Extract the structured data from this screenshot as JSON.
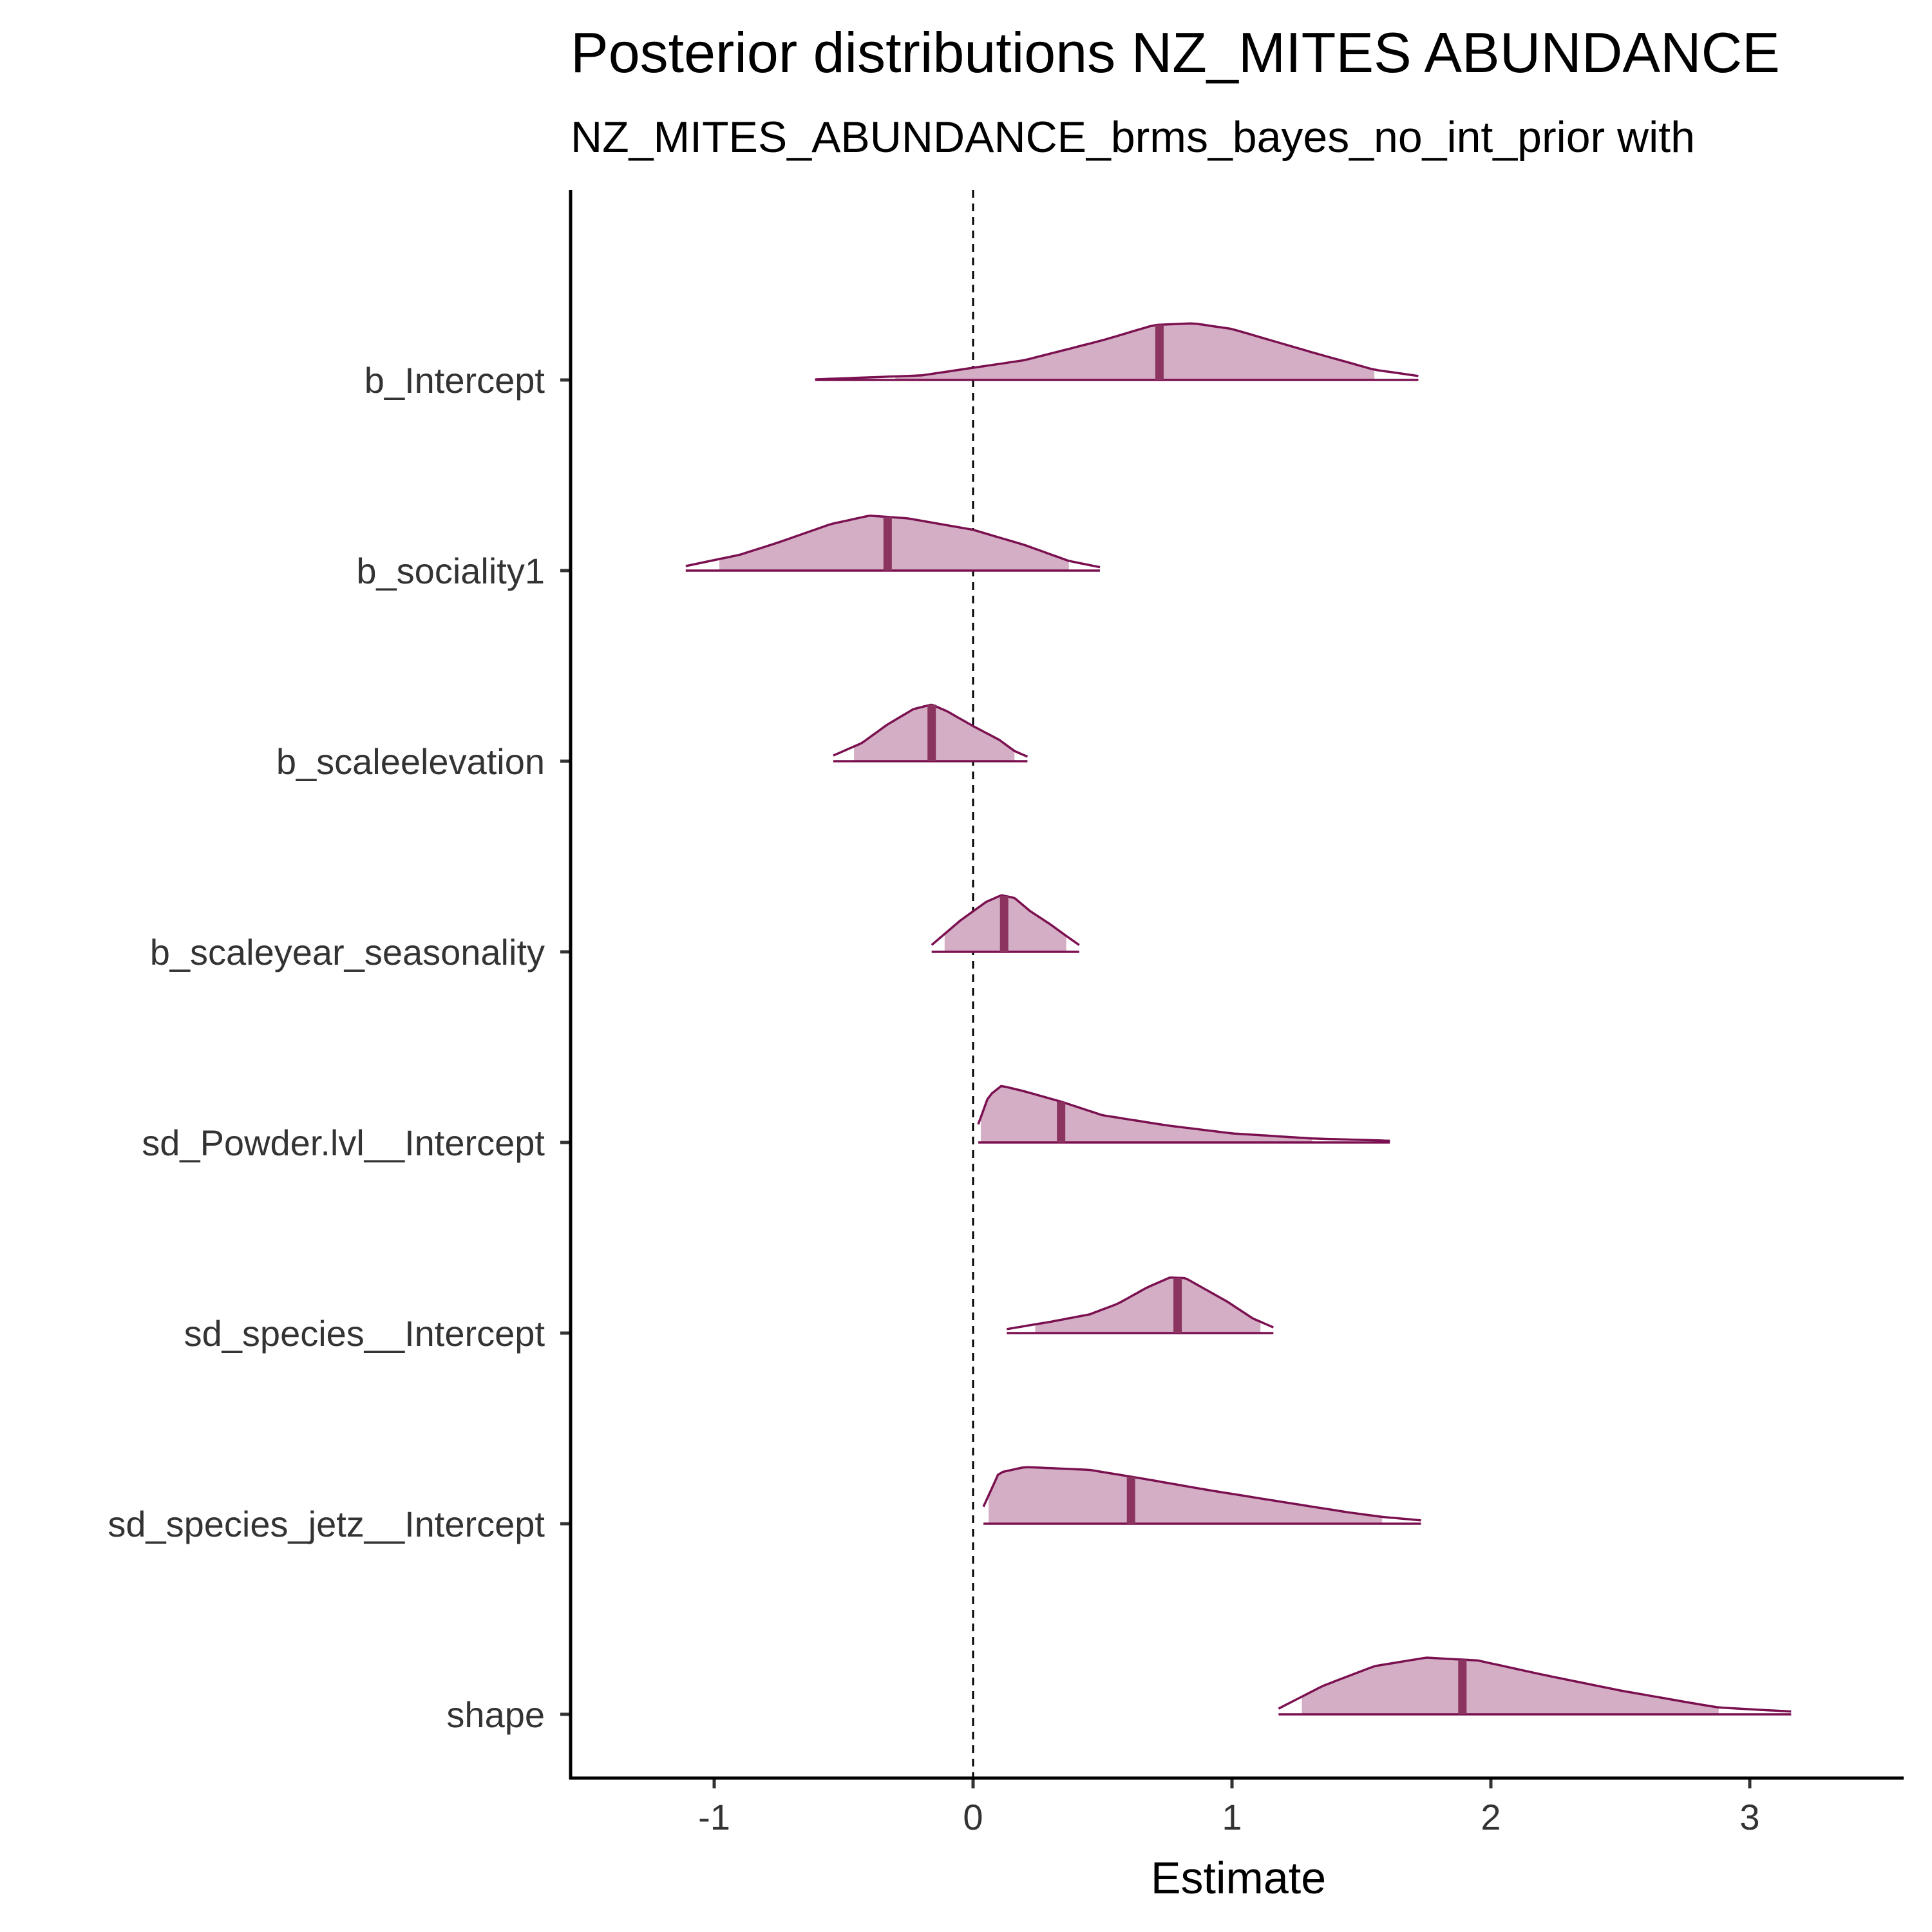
{
  "chart_data": {
    "type": "area",
    "title": "Posterior distributions NZ_MITES ABUNDANCE",
    "subtitle": "NZ_MITES_ABUNDANCE_brms_bayes_no_int_prior with",
    "xlabel": "Estimate",
    "ylabel": "",
    "xlim": [
      -1.55,
      3.6
    ],
    "x_ticks": [
      "-1",
      "0",
      "1",
      "2",
      "3"
    ],
    "reference_line_x": 0,
    "colors": {
      "fill": "#d4aec4",
      "line": "#7b1050",
      "median": "#8c3460",
      "axis": "#000000"
    },
    "categories": [
      "b_Intercept",
      "b_sociality1",
      "b_scaleelevation",
      "b_scaleyear_seasonality",
      "sd_Powder.lvl__Intercept",
      "sd_species__Intercept",
      "sd_species_jetz__Intercept",
      "shape"
    ],
    "series": [
      {
        "range": [
          -0.61,
          1.72
        ],
        "interval": [
          -0.3,
          1.55
        ],
        "median": 0.72,
        "density": [
          [
            -0.61,
            0.01
          ],
          [
            -0.2,
            0.08
          ],
          [
            0.2,
            0.35
          ],
          [
            0.5,
            0.7
          ],
          [
            0.7,
            0.97
          ],
          [
            0.85,
            1.0
          ],
          [
            1.0,
            0.9
          ],
          [
            1.3,
            0.5
          ],
          [
            1.55,
            0.18
          ],
          [
            1.72,
            0.07
          ]
        ]
      },
      {
        "range": [
          -1.11,
          0.49
        ],
        "interval": [
          -0.98,
          0.37
        ],
        "median": -0.33,
        "density": [
          [
            -1.11,
            0.08
          ],
          [
            -0.9,
            0.28
          ],
          [
            -0.75,
            0.5
          ],
          [
            -0.55,
            0.82
          ],
          [
            -0.4,
            0.97
          ],
          [
            -0.25,
            0.92
          ],
          [
            0.0,
            0.72
          ],
          [
            0.2,
            0.45
          ],
          [
            0.37,
            0.17
          ],
          [
            0.49,
            0.06
          ]
        ]
      },
      {
        "range": [
          -0.54,
          0.21
        ],
        "interval": [
          -0.46,
          0.16
        ],
        "median": -0.16,
        "density": [
          [
            -0.54,
            0.1
          ],
          [
            -0.43,
            0.32
          ],
          [
            -0.33,
            0.65
          ],
          [
            -0.23,
            0.92
          ],
          [
            -0.16,
            1.0
          ],
          [
            -0.1,
            0.88
          ],
          [
            0.0,
            0.62
          ],
          [
            0.1,
            0.38
          ],
          [
            0.16,
            0.18
          ],
          [
            0.21,
            0.08
          ]
        ]
      },
      {
        "range": [
          -0.16,
          0.41
        ],
        "interval": [
          -0.11,
          0.36
        ],
        "median": 0.12,
        "density": [
          [
            -0.16,
            0.12
          ],
          [
            -0.05,
            0.55
          ],
          [
            0.05,
            0.88
          ],
          [
            0.11,
            1.0
          ],
          [
            0.16,
            0.95
          ],
          [
            0.22,
            0.72
          ],
          [
            0.3,
            0.48
          ],
          [
            0.36,
            0.28
          ],
          [
            0.41,
            0.12
          ]
        ]
      },
      {
        "range": [
          0.02,
          1.61
        ],
        "interval": [
          0.03,
          1.31
        ],
        "median": 0.34,
        "density": [
          [
            0.02,
            0.32
          ],
          [
            0.06,
            0.82
          ],
          [
            0.11,
            1.0
          ],
          [
            0.2,
            0.9
          ],
          [
            0.34,
            0.72
          ],
          [
            0.5,
            0.48
          ],
          [
            0.75,
            0.3
          ],
          [
            1.0,
            0.16
          ],
          [
            1.31,
            0.07
          ],
          [
            1.61,
            0.03
          ]
        ]
      },
      {
        "range": [
          0.13,
          1.16
        ],
        "interval": [
          0.24,
          1.11
        ],
        "median": 0.79,
        "density": [
          [
            0.13,
            0.07
          ],
          [
            0.3,
            0.2
          ],
          [
            0.45,
            0.33
          ],
          [
            0.56,
            0.52
          ],
          [
            0.67,
            0.8
          ],
          [
            0.76,
            0.98
          ],
          [
            0.82,
            0.97
          ],
          [
            0.98,
            0.56
          ],
          [
            1.08,
            0.26
          ],
          [
            1.16,
            0.1
          ]
        ]
      },
      {
        "range": [
          0.04,
          1.73
        ],
        "interval": [
          0.06,
          1.58
        ],
        "median": 0.61,
        "density": [
          [
            0.04,
            0.3
          ],
          [
            0.1,
            0.9
          ],
          [
            0.2,
            1.0
          ],
          [
            0.45,
            0.95
          ],
          [
            0.65,
            0.8
          ],
          [
            0.9,
            0.6
          ],
          [
            1.2,
            0.38
          ],
          [
            1.45,
            0.2
          ],
          [
            1.58,
            0.12
          ],
          [
            1.73,
            0.06
          ]
        ]
      },
      {
        "range": [
          1.18,
          3.16
        ],
        "interval": [
          1.27,
          2.88
        ],
        "median": 1.89,
        "density": [
          [
            1.18,
            0.1
          ],
          [
            1.35,
            0.5
          ],
          [
            1.55,
            0.85
          ],
          [
            1.75,
            1.0
          ],
          [
            1.95,
            0.95
          ],
          [
            2.2,
            0.7
          ],
          [
            2.5,
            0.42
          ],
          [
            2.75,
            0.22
          ],
          [
            2.88,
            0.12
          ],
          [
            3.16,
            0.05
          ]
        ]
      }
    ]
  }
}
